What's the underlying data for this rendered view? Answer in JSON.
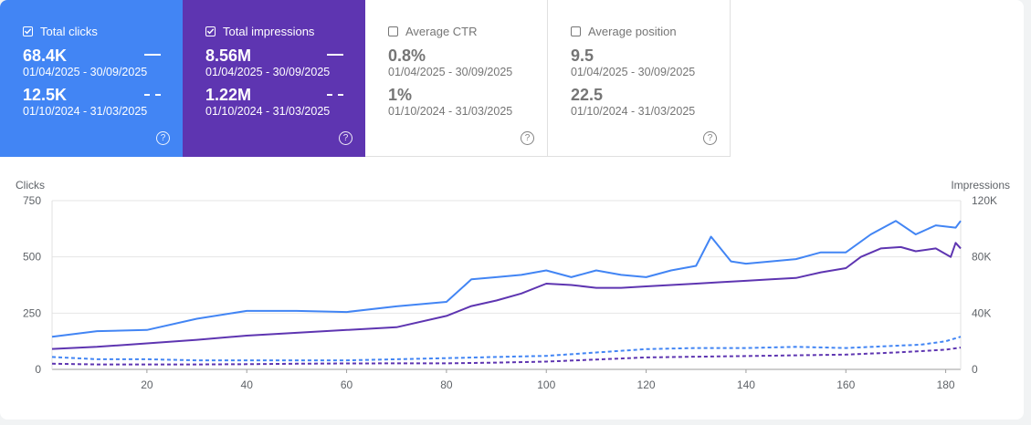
{
  "metrics": [
    {
      "label": "Total clicks",
      "checked": true,
      "color": "#4285f4",
      "current_value": "68.4K",
      "current_range": "01/04/2025 - 30/09/2025",
      "previous_value": "12.5K",
      "previous_range": "01/10/2024 - 31/03/2025",
      "help_icon": "help-circle-icon"
    },
    {
      "label": "Total impressions",
      "checked": true,
      "color": "#5e35b1",
      "current_value": "8.56M",
      "current_range": "01/04/2025 - 30/09/2025",
      "previous_value": "1.22M",
      "previous_range": "01/10/2024 - 31/03/2025",
      "help_icon": "help-circle-icon"
    },
    {
      "label": "Average CTR",
      "checked": false,
      "color": "#ffffff",
      "current_value": "0.8%",
      "current_range": "01/04/2025 - 30/09/2025",
      "previous_value": "1%",
      "previous_range": "01/10/2024 - 31/03/2025",
      "help_icon": "help-circle-icon"
    },
    {
      "label": "Average position",
      "checked": false,
      "color": "#ffffff",
      "current_value": "9.5",
      "current_range": "01/04/2025 - 30/09/2025",
      "previous_value": "22.5",
      "previous_range": "01/10/2024 - 31/03/2025",
      "help_icon": "help-circle-icon"
    }
  ],
  "chart_data": {
    "type": "line",
    "left_axis": {
      "label": "Clicks",
      "ticks": [
        "0",
        "250",
        "500",
        "750"
      ],
      "ylim": [
        0,
        750
      ]
    },
    "right_axis": {
      "label": "Impressions",
      "ticks": [
        "0",
        "40K",
        "80K",
        "120K"
      ],
      "ylim": [
        0,
        120000
      ]
    },
    "x_ticks": [
      20,
      40,
      60,
      80,
      100,
      120,
      140,
      160,
      180
    ],
    "xlim": [
      1,
      183
    ],
    "grid": true,
    "series": [
      {
        "axis": "left",
        "style": "solid",
        "color": "#4285f4",
        "points": [
          [
            1,
            145
          ],
          [
            10,
            170
          ],
          [
            20,
            175
          ],
          [
            30,
            225
          ],
          [
            40,
            260
          ],
          [
            50,
            260
          ],
          [
            60,
            255
          ],
          [
            70,
            280
          ],
          [
            80,
            300
          ],
          [
            85,
            400
          ],
          [
            90,
            410
          ],
          [
            95,
            420
          ],
          [
            100,
            440
          ],
          [
            105,
            410
          ],
          [
            110,
            440
          ],
          [
            115,
            420
          ],
          [
            120,
            410
          ],
          [
            125,
            440
          ],
          [
            130,
            460
          ],
          [
            133,
            590
          ],
          [
            137,
            480
          ],
          [
            140,
            470
          ],
          [
            145,
            480
          ],
          [
            150,
            490
          ],
          [
            155,
            520
          ],
          [
            160,
            520
          ],
          [
            165,
            600
          ],
          [
            170,
            660
          ],
          [
            174,
            600
          ],
          [
            178,
            640
          ],
          [
            182,
            630
          ],
          [
            183,
            660
          ]
        ]
      },
      {
        "axis": "right",
        "style": "solid",
        "color": "#5e35b1",
        "points": [
          [
            1,
            14500
          ],
          [
            10,
            16000
          ],
          [
            20,
            18500
          ],
          [
            30,
            21000
          ],
          [
            40,
            24000
          ],
          [
            50,
            26000
          ],
          [
            60,
            28000
          ],
          [
            70,
            30000
          ],
          [
            80,
            38000
          ],
          [
            85,
            45000
          ],
          [
            90,
            49000
          ],
          [
            95,
            54000
          ],
          [
            100,
            61000
          ],
          [
            105,
            60000
          ],
          [
            110,
            58000
          ],
          [
            115,
            58000
          ],
          [
            120,
            59000
          ],
          [
            125,
            60000
          ],
          [
            130,
            61000
          ],
          [
            135,
            62000
          ],
          [
            140,
            63000
          ],
          [
            145,
            64000
          ],
          [
            150,
            65000
          ],
          [
            155,
            69000
          ],
          [
            160,
            72000
          ],
          [
            163,
            80000
          ],
          [
            167,
            86000
          ],
          [
            171,
            87000
          ],
          [
            174,
            84000
          ],
          [
            178,
            86000
          ],
          [
            181,
            80000
          ],
          [
            182,
            90000
          ],
          [
            183,
            86000
          ]
        ]
      },
      {
        "axis": "left",
        "style": "dashed",
        "color": "#4285f4",
        "points": [
          [
            1,
            55
          ],
          [
            10,
            45
          ],
          [
            20,
            45
          ],
          [
            30,
            40
          ],
          [
            40,
            40
          ],
          [
            50,
            40
          ],
          [
            60,
            40
          ],
          [
            70,
            45
          ],
          [
            80,
            50
          ],
          [
            90,
            55
          ],
          [
            100,
            60
          ],
          [
            110,
            75
          ],
          [
            120,
            90
          ],
          [
            130,
            95
          ],
          [
            140,
            95
          ],
          [
            150,
            100
          ],
          [
            160,
            95
          ],
          [
            170,
            105
          ],
          [
            175,
            110
          ],
          [
            180,
            125
          ],
          [
            183,
            145
          ]
        ]
      },
      {
        "axis": "right",
        "style": "dashed",
        "color": "#5e35b1",
        "points": [
          [
            1,
            4000
          ],
          [
            10,
            3500
          ],
          [
            20,
            3500
          ],
          [
            30,
            3500
          ],
          [
            40,
            3700
          ],
          [
            50,
            4000
          ],
          [
            60,
            4200
          ],
          [
            70,
            4300
          ],
          [
            80,
            4300
          ],
          [
            90,
            4800
          ],
          [
            100,
            5500
          ],
          [
            110,
            7000
          ],
          [
            120,
            8500
          ],
          [
            130,
            9000
          ],
          [
            140,
            9500
          ],
          [
            150,
            10000
          ],
          [
            160,
            10500
          ],
          [
            170,
            12000
          ],
          [
            175,
            13000
          ],
          [
            180,
            14000
          ],
          [
            183,
            15500
          ]
        ]
      }
    ]
  }
}
